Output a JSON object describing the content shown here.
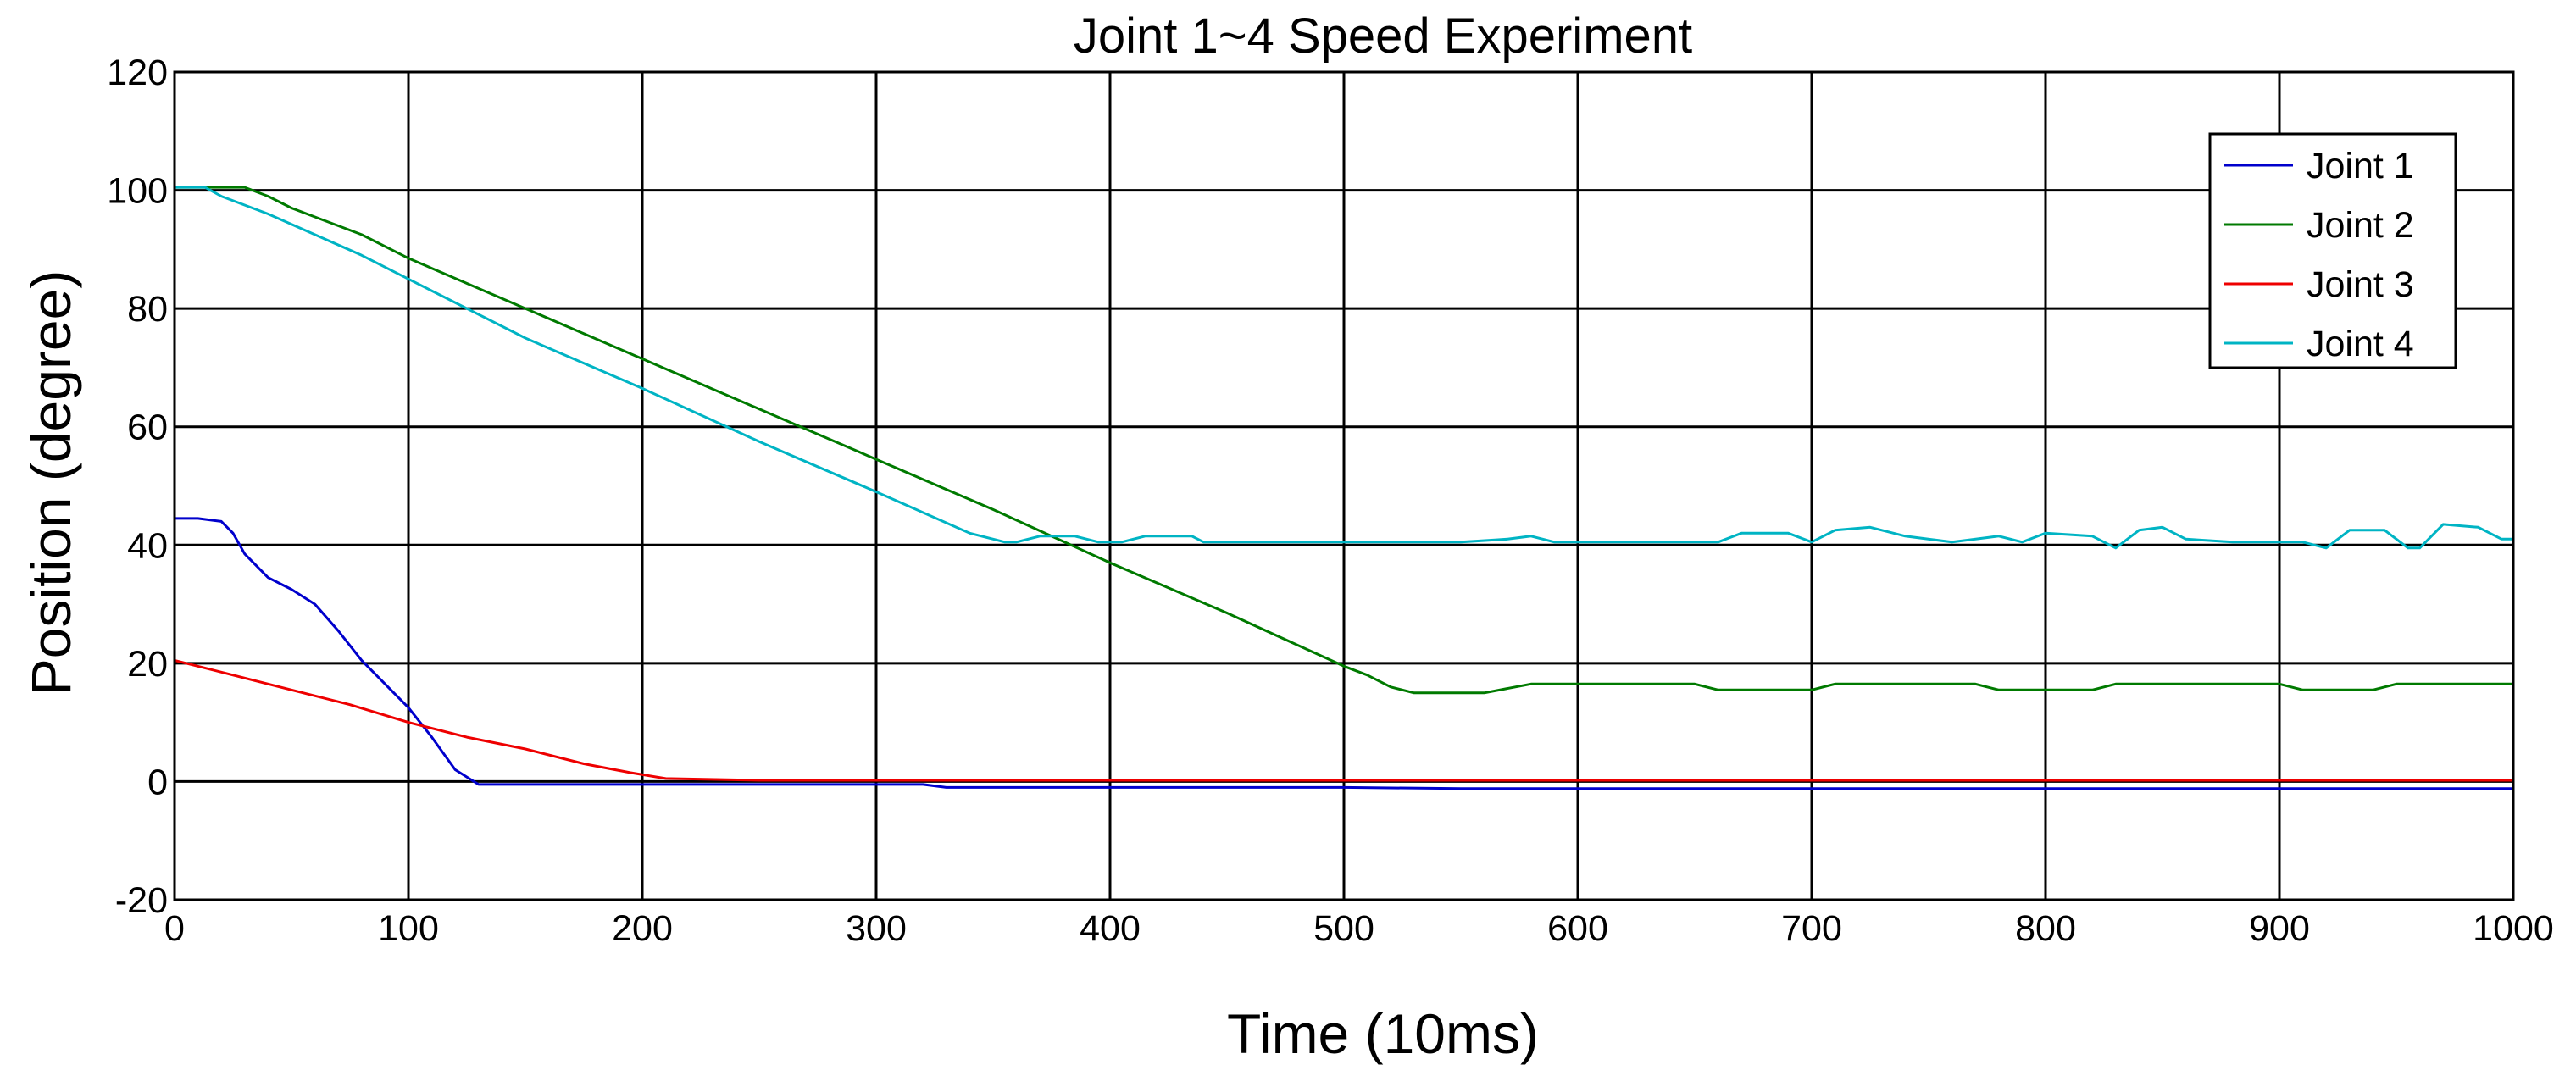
{
  "chart_data": {
    "type": "line",
    "title": "Joint 1~4 Speed Experiment",
    "xlabel": "Time (10ms)",
    "ylabel": "Position (degree)",
    "xlim": [
      0,
      1000
    ],
    "ylim": [
      -20,
      120
    ],
    "xticks": [
      0,
      100,
      200,
      300,
      400,
      500,
      600,
      700,
      800,
      900,
      1000
    ],
    "yticks": [
      -20,
      0,
      20,
      40,
      60,
      80,
      100,
      120
    ],
    "xtick_labels": [
      "0",
      "100",
      "200",
      "300",
      "400",
      "500",
      "600",
      "700",
      "800",
      "900",
      "1000"
    ],
    "ytick_labels": [
      "-20",
      "0",
      "20",
      "40",
      "60",
      "80",
      "100",
      "120"
    ],
    "hgrid_lines": [
      -20,
      0,
      20,
      40,
      60,
      80,
      100,
      120
    ],
    "grid": true,
    "legend_position": "top-right",
    "series": [
      {
        "name": "Joint 1",
        "color": "#0000cc",
        "points": [
          [
            0,
            44.5
          ],
          [
            10,
            44.5
          ],
          [
            20,
            44
          ],
          [
            25,
            42
          ],
          [
            30,
            38.5
          ],
          [
            40,
            34.5
          ],
          [
            50,
            32.5
          ],
          [
            60,
            30
          ],
          [
            70,
            25.5
          ],
          [
            80,
            20.5
          ],
          [
            90,
            16.5
          ],
          [
            100,
            12.5
          ],
          [
            110,
            7.5
          ],
          [
            120,
            2
          ],
          [
            130,
            -0.5
          ],
          [
            200,
            -0.5
          ],
          [
            320,
            -0.5
          ],
          [
            330,
            -1
          ],
          [
            500,
            -1
          ],
          [
            550,
            -1.2
          ],
          [
            1000,
            -1.2
          ]
        ]
      },
      {
        "name": "Joint 2",
        "color": "#007a00",
        "points": [
          [
            0,
            100.5
          ],
          [
            30,
            100.5
          ],
          [
            40,
            99
          ],
          [
            50,
            97
          ],
          [
            60,
            95.5
          ],
          [
            80,
            92.5
          ],
          [
            100,
            88.5
          ],
          [
            150,
            80
          ],
          [
            200,
            71.5
          ],
          [
            250,
            63
          ],
          [
            300,
            54.5
          ],
          [
            350,
            46
          ],
          [
            400,
            37
          ],
          [
            450,
            28.5
          ],
          [
            500,
            19.5
          ],
          [
            510,
            18
          ],
          [
            520,
            16
          ],
          [
            530,
            15
          ],
          [
            560,
            15
          ],
          [
            580,
            16.5
          ],
          [
            650,
            16.5
          ],
          [
            660,
            15.5
          ],
          [
            700,
            15.5
          ],
          [
            710,
            16.5
          ],
          [
            770,
            16.5
          ],
          [
            780,
            15.5
          ],
          [
            820,
            15.5
          ],
          [
            830,
            16.5
          ],
          [
            900,
            16.5
          ],
          [
            910,
            15.5
          ],
          [
            940,
            15.5
          ],
          [
            950,
            16.5
          ],
          [
            1000,
            16.5
          ]
        ]
      },
      {
        "name": "Joint 3",
        "color": "#ee0000",
        "points": [
          [
            0,
            20.5
          ],
          [
            25,
            18
          ],
          [
            50,
            15.5
          ],
          [
            75,
            13
          ],
          [
            100,
            10
          ],
          [
            125,
            7.5
          ],
          [
            150,
            5.5
          ],
          [
            175,
            3
          ],
          [
            195,
            1.5
          ],
          [
            210,
            0.5
          ],
          [
            250,
            0.2
          ],
          [
            300,
            0.2
          ],
          [
            400,
            0.2
          ],
          [
            500,
            0.2
          ],
          [
            520,
            0.2
          ],
          [
            550,
            0.2
          ],
          [
            600,
            0.2
          ],
          [
            700,
            0.2
          ],
          [
            800,
            0.2
          ],
          [
            900,
            0.2
          ],
          [
            1000,
            0.2
          ]
        ]
      },
      {
        "name": "Joint 4",
        "color": "#00b4c4",
        "points": [
          [
            0,
            100.5
          ],
          [
            13,
            100.5
          ],
          [
            20,
            99
          ],
          [
            40,
            96
          ],
          [
            60,
            92.5
          ],
          [
            80,
            89
          ],
          [
            100,
            85
          ],
          [
            150,
            75
          ],
          [
            200,
            66.5
          ],
          [
            250,
            57.5
          ],
          [
            300,
            49
          ],
          [
            340,
            42
          ],
          [
            355,
            40.5
          ],
          [
            360,
            40.5
          ],
          [
            370,
            41.5
          ],
          [
            385,
            41.5
          ],
          [
            395,
            40.5
          ],
          [
            405,
            40.5
          ],
          [
            415,
            41.5
          ],
          [
            435,
            41.5
          ],
          [
            440,
            40.5
          ],
          [
            500,
            40.5
          ],
          [
            550,
            40.5
          ],
          [
            570,
            41
          ],
          [
            580,
            41.5
          ],
          [
            590,
            40.5
          ],
          [
            660,
            40.5
          ],
          [
            670,
            42
          ],
          [
            690,
            42
          ],
          [
            700,
            40.5
          ],
          [
            710,
            42.5
          ],
          [
            725,
            43
          ],
          [
            740,
            41.5
          ],
          [
            760,
            40.5
          ],
          [
            780,
            41.5
          ],
          [
            790,
            40.5
          ],
          [
            800,
            42
          ],
          [
            820,
            41.5
          ],
          [
            830,
            39.5
          ],
          [
            840,
            42.5
          ],
          [
            850,
            43
          ],
          [
            860,
            41
          ],
          [
            880,
            40.5
          ],
          [
            900,
            40.5
          ],
          [
            910,
            40.5
          ],
          [
            920,
            39.5
          ],
          [
            930,
            42.5
          ],
          [
            945,
            42.5
          ],
          [
            955,
            39.5
          ],
          [
            960,
            39.5
          ],
          [
            970,
            43.5
          ],
          [
            985,
            43
          ],
          [
            995,
            41
          ],
          [
            1000,
            41
          ]
        ]
      }
    ]
  }
}
